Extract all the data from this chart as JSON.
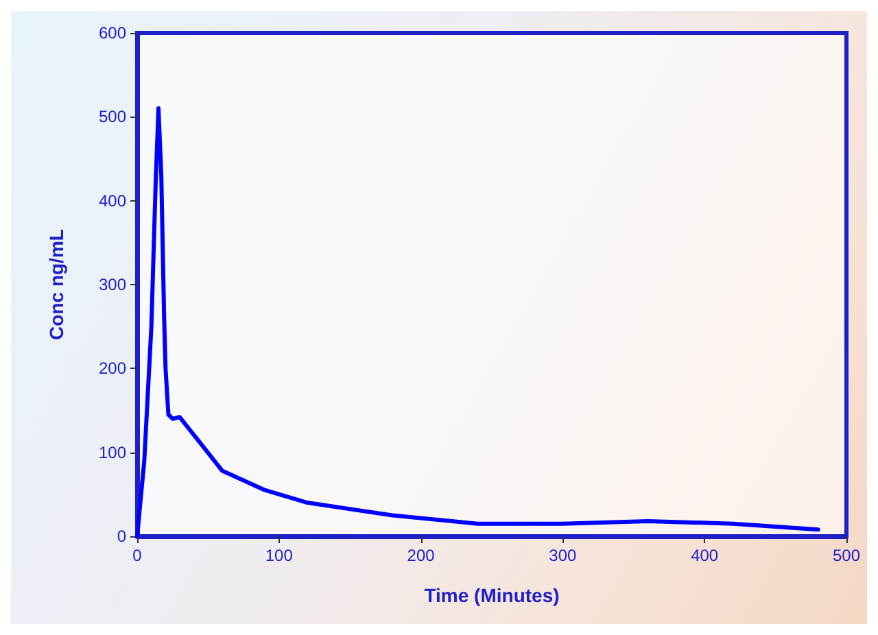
{
  "chart_data": {
    "type": "line",
    "xlabel": "Time (Minutes)",
    "ylabel": "Conc ng/mL",
    "x": [
      0,
      5,
      10,
      13,
      15,
      17,
      19,
      20,
      22,
      25,
      30,
      45,
      60,
      90,
      120,
      180,
      240,
      300,
      360,
      420,
      480
    ],
    "series": [
      {
        "color": "#0000ff",
        "values": [
          0,
          90,
          250,
          420,
          510,
          430,
          260,
          200,
          145,
          140,
          142,
          110,
          78,
          55,
          40,
          25,
          15,
          15,
          18,
          15,
          8
        ]
      }
    ],
    "xlim": [
      0,
      500
    ],
    "xticks": [
      0,
      100,
      200,
      300,
      400,
      500
    ],
    "ylim": [
      0,
      600
    ],
    "yticks": [
      0,
      100,
      200,
      300,
      400,
      500,
      600
    ],
    "grid": false,
    "marker": "none",
    "line_style": "solid"
  }
}
